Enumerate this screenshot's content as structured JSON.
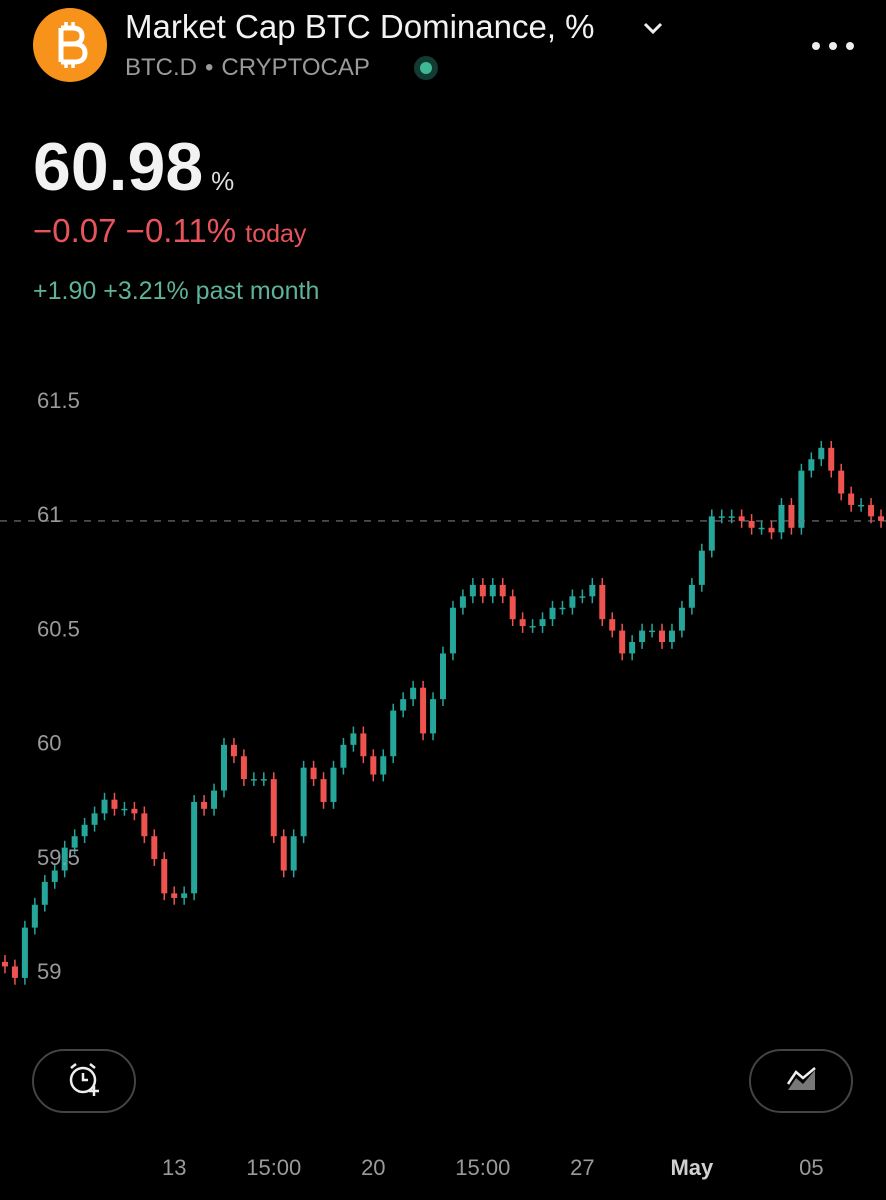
{
  "header": {
    "title": "Market Cap BTC Dominance, %",
    "symbol": "BTC.D",
    "separator": "•",
    "exchange": "CRYPTOCAP"
  },
  "quote": {
    "price": "60.98",
    "unit": "%",
    "change": "−0.07",
    "change_percent": "−0.11%",
    "change_period": "today",
    "month_change": "+1.90",
    "month_change_percent": "+3.21%",
    "month_period": "past month"
  },
  "chart_data": {
    "type": "candlestick",
    "up_color": "#26a69a",
    "down_color": "#ef5350",
    "grid": false,
    "ylim": [
      58.73,
      61.75
    ],
    "yticks": [
      59,
      59.5,
      60,
      60.5,
      61,
      61.5
    ],
    "categories": [
      null,
      null,
      null,
      null,
      null,
      null,
      null,
      null,
      null,
      null,
      null,
      null,
      null,
      null,
      null,
      null,
      null,
      "13",
      null,
      null,
      null,
      null,
      null,
      null,
      null,
      null,
      null,
      "15:00",
      null,
      null,
      null,
      null,
      null,
      null,
      null,
      null,
      null,
      "20",
      null,
      null,
      null,
      null,
      null,
      null,
      null,
      null,
      null,
      null,
      "15:00",
      null,
      null,
      null,
      null,
      null,
      null,
      null,
      null,
      null,
      "27",
      null,
      null,
      null,
      null,
      null,
      null,
      null,
      null,
      null,
      null,
      "May",
      null,
      null,
      null,
      null,
      null,
      null,
      null,
      null,
      null,
      null,
      null,
      "05",
      null,
      null,
      null,
      null,
      null,
      null,
      null
    ],
    "open": [
      59.05,
      59.03,
      58.98,
      59.2,
      59.3,
      59.4,
      59.45,
      59.55,
      59.6,
      59.65,
      59.7,
      59.76,
      59.72,
      59.72,
      59.7,
      59.6,
      59.5,
      59.35,
      59.33,
      59.35,
      59.75,
      59.72,
      59.8,
      60.0,
      59.95,
      59.85,
      59.85,
      59.85,
      59.6,
      59.45,
      59.6,
      59.9,
      59.85,
      59.75,
      59.9,
      60.0,
      60.05,
      59.95,
      59.87,
      59.95,
      60.15,
      60.2,
      60.25,
      60.05,
      60.2,
      60.4,
      60.6,
      60.65,
      60.7,
      60.65,
      60.7,
      60.65,
      60.55,
      60.52,
      60.52,
      60.55,
      60.6,
      60.6,
      60.65,
      60.65,
      60.7,
      60.55,
      60.5,
      60.4,
      60.45,
      60.5,
      60.5,
      60.45,
      60.5,
      60.6,
      60.7,
      60.85,
      61.0,
      61.0,
      61.0,
      60.98,
      60.95,
      60.95,
      60.93,
      61.05,
      60.95,
      61.2,
      61.25,
      61.3,
      61.2,
      61.1,
      61.05,
      61.05,
      61.0
    ],
    "high": [
      59.08,
      59.06,
      59.23,
      59.33,
      59.43,
      59.48,
      59.58,
      59.63,
      59.68,
      59.73,
      59.79,
      59.79,
      59.75,
      59.75,
      59.73,
      59.63,
      59.53,
      59.38,
      59.38,
      59.78,
      59.78,
      59.83,
      60.03,
      60.03,
      59.98,
      59.88,
      59.88,
      59.88,
      59.63,
      59.63,
      59.93,
      59.93,
      59.88,
      59.93,
      60.03,
      60.08,
      60.08,
      59.98,
      59.98,
      60.18,
      60.23,
      60.28,
      60.28,
      60.23,
      60.43,
      60.63,
      60.68,
      60.73,
      60.73,
      60.73,
      60.73,
      60.68,
      60.58,
      60.55,
      60.58,
      60.63,
      60.63,
      60.68,
      60.68,
      60.73,
      60.73,
      60.58,
      60.53,
      60.48,
      60.53,
      60.53,
      60.53,
      60.53,
      60.63,
      60.73,
      60.88,
      61.03,
      61.03,
      61.03,
      61.03,
      61.01,
      60.98,
      60.98,
      61.08,
      61.08,
      61.23,
      61.28,
      61.33,
      61.33,
      61.23,
      61.13,
      61.08,
      61.08,
      61.03
    ],
    "low": [
      59.0,
      58.95,
      58.95,
      59.17,
      59.27,
      59.37,
      59.42,
      59.52,
      59.57,
      59.62,
      59.67,
      59.69,
      59.69,
      59.67,
      59.57,
      59.47,
      59.32,
      59.3,
      59.3,
      59.32,
      59.69,
      59.69,
      59.77,
      59.92,
      59.82,
      59.82,
      59.82,
      59.57,
      59.42,
      59.42,
      59.57,
      59.82,
      59.72,
      59.72,
      59.87,
      59.97,
      59.92,
      59.84,
      59.84,
      59.92,
      60.12,
      60.17,
      60.02,
      60.02,
      60.17,
      60.37,
      60.57,
      60.62,
      60.62,
      60.62,
      60.62,
      60.52,
      60.49,
      60.49,
      60.49,
      60.52,
      60.57,
      60.57,
      60.62,
      60.62,
      60.52,
      60.47,
      60.37,
      60.37,
      60.42,
      60.47,
      60.42,
      60.42,
      60.47,
      60.57,
      60.67,
      60.82,
      60.97,
      60.97,
      60.95,
      60.92,
      60.92,
      60.9,
      60.9,
      60.92,
      60.92,
      61.17,
      61.22,
      61.17,
      61.07,
      61.02,
      61.02,
      60.97,
      60.95
    ],
    "close": [
      59.03,
      58.98,
      59.2,
      59.3,
      59.4,
      59.45,
      59.55,
      59.6,
      59.65,
      59.7,
      59.76,
      59.72,
      59.72,
      59.7,
      59.6,
      59.5,
      59.35,
      59.33,
      59.35,
      59.75,
      59.72,
      59.8,
      60.0,
      59.95,
      59.85,
      59.85,
      59.85,
      59.6,
      59.45,
      59.6,
      59.9,
      59.85,
      59.75,
      59.9,
      60.0,
      60.05,
      59.95,
      59.87,
      59.95,
      60.15,
      60.2,
      60.25,
      60.05,
      60.2,
      60.4,
      60.6,
      60.65,
      60.7,
      60.65,
      60.7,
      60.65,
      60.55,
      60.52,
      60.52,
      60.55,
      60.6,
      60.6,
      60.65,
      60.65,
      60.7,
      60.55,
      60.5,
      60.4,
      60.45,
      60.5,
      60.5,
      60.45,
      60.5,
      60.6,
      60.7,
      60.85,
      61.0,
      61.0,
      61.0,
      60.98,
      60.95,
      60.95,
      60.93,
      61.05,
      60.95,
      61.2,
      61.25,
      61.3,
      61.2,
      61.1,
      61.05,
      61.05,
      61.0,
      60.98
    ]
  }
}
